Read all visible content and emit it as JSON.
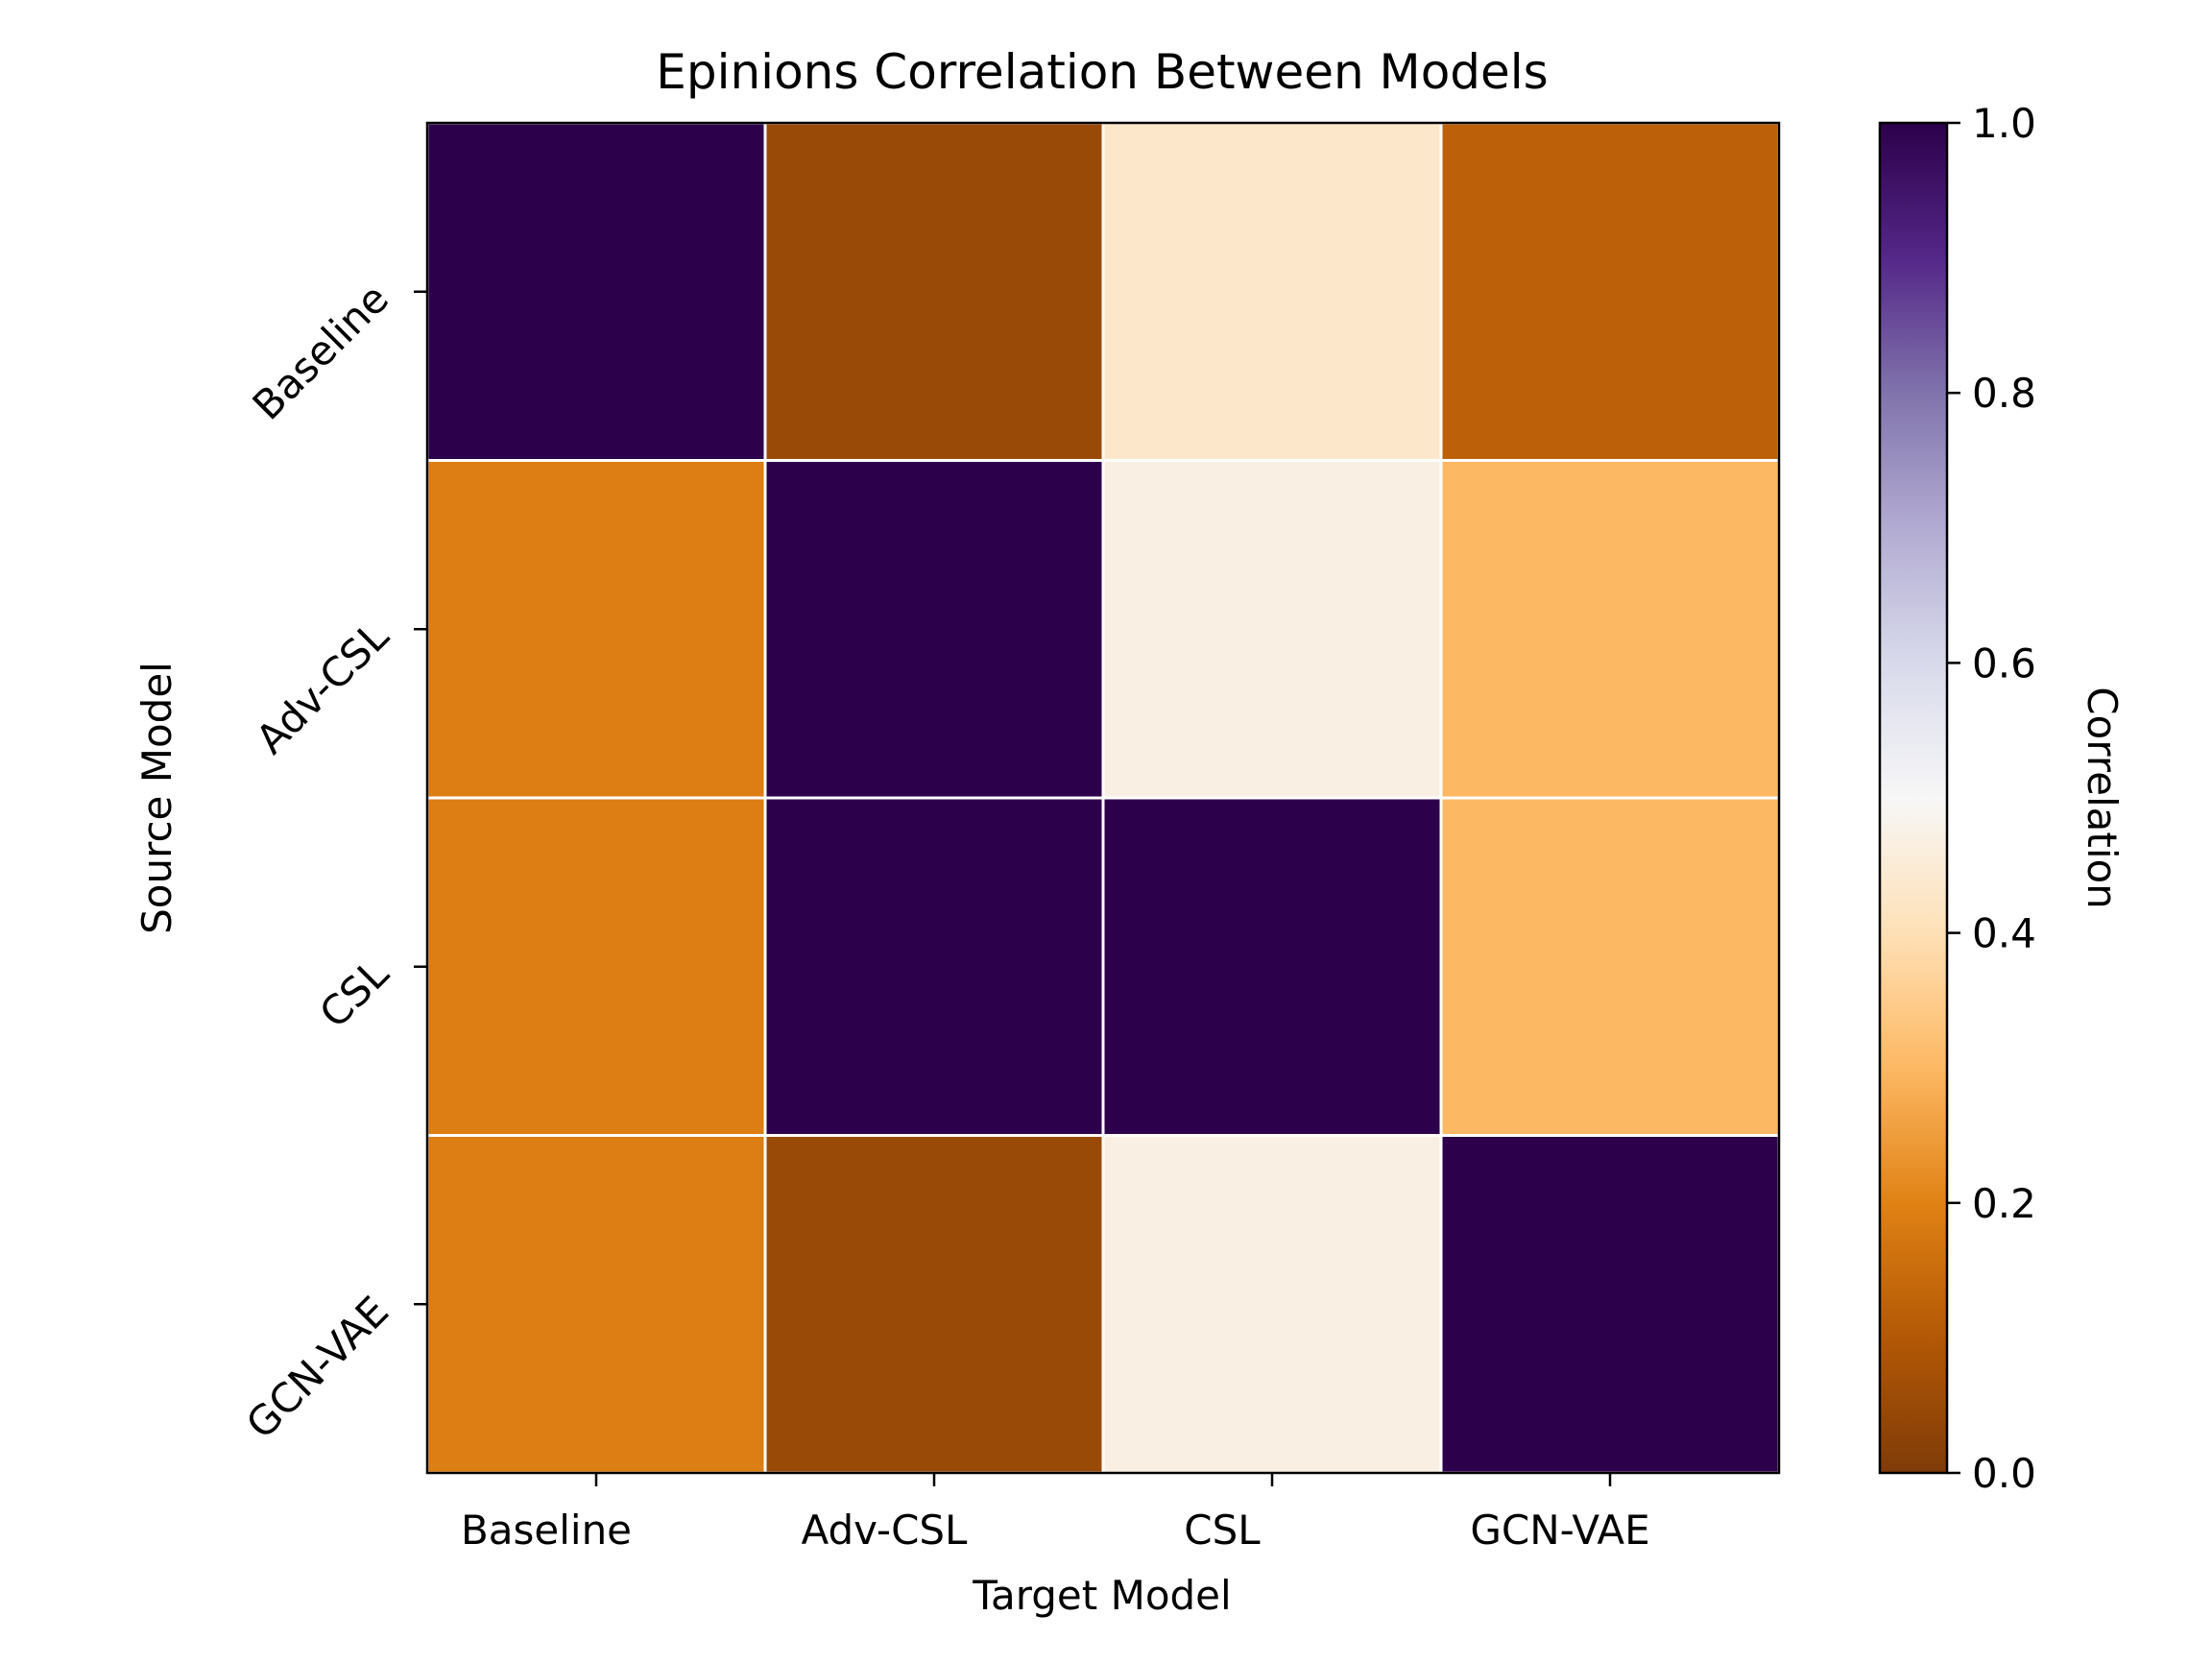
{
  "chart_data": {
    "type": "heatmap",
    "title": "Epinions Correlation Between Models",
    "xlabel": "Target Model",
    "ylabel": "Source Model",
    "x_categories": [
      "Baseline",
      "Adv-CSL",
      "CSL",
      "GCN-VAE"
    ],
    "y_categories": [
      "Baseline",
      "Adv-CSL",
      "CSL",
      "GCN-VAE"
    ],
    "values": [
      [
        1.0,
        0.05,
        0.43,
        0.12
      ],
      [
        0.19,
        1.0,
        0.47,
        0.3
      ],
      [
        0.19,
        1.0,
        1.0,
        0.3
      ],
      [
        0.19,
        0.05,
        0.47,
        1.0
      ]
    ],
    "colorbar": {
      "label": "Correlation",
      "range": [
        0.0,
        1.0
      ],
      "ticks": [
        "0.0",
        "0.2",
        "0.4",
        "0.6",
        "0.8",
        "1.0"
      ],
      "colormap": "PuOr",
      "stops": [
        "#7f3b08",
        "#b35806",
        "#e08214",
        "#fdb863",
        "#fee0b6",
        "#f7f7f7",
        "#d8daeb",
        "#b2abd2",
        "#8073ac",
        "#542788",
        "#2d004b"
      ]
    },
    "grid": true,
    "grid_color": "#ffffff"
  }
}
